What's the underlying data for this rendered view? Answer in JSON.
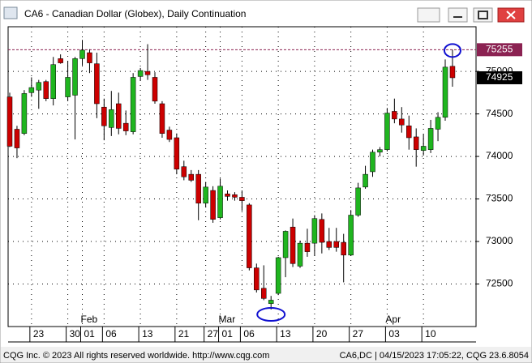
{
  "chart_data": {
    "type": "candlestick",
    "title": "CA6 - Canadian Dollar (Globex), Daily Continuation",
    "categories": [
      null,
      null,
      null,
      "23",
      null,
      null,
      null,
      null,
      "30",
      null,
      "01",
      null,
      null,
      "06",
      null,
      null,
      null,
      null,
      "13",
      null,
      null,
      null,
      null,
      "21",
      null,
      null,
      null,
      "27",
      null,
      "01",
      null,
      null,
      "06",
      null,
      null,
      null,
      null,
      "13",
      null,
      null,
      null,
      null,
      "20",
      null,
      null,
      null,
      null,
      "27",
      null,
      null,
      null,
      null,
      "03",
      null,
      null,
      null,
      null,
      "10",
      null,
      null,
      null,
      null
    ],
    "months": [
      null,
      null,
      null,
      null,
      null,
      null,
      null,
      null,
      null,
      null,
      "Feb",
      null,
      null,
      null,
      null,
      null,
      null,
      null,
      null,
      null,
      null,
      null,
      null,
      null,
      null,
      null,
      null,
      null,
      null,
      "Mar",
      null,
      null,
      null,
      null,
      null,
      null,
      null,
      null,
      null,
      null,
      null,
      null,
      null,
      null,
      null,
      null,
      null,
      null,
      null,
      null,
      null,
      null,
      "Apr",
      null,
      null,
      null,
      null,
      null,
      null,
      null,
      null,
      null
    ],
    "open": [
      74700,
      74320,
      74270,
      74750,
      74780,
      74880,
      74680,
      75150,
      74700,
      74720,
      75150,
      75220,
      75090,
      74580,
      74340,
      74620,
      74390,
      74290,
      74940,
      75000,
      74930,
      74620,
      74310,
      74220,
      73880,
      73790,
      73790,
      73450,
      73600,
      73280,
      73560,
      73550,
      73520,
      73430,
      72690,
      72450,
      72270,
      72390,
      72810,
      73170,
      72710,
      72980,
      72980,
      73260,
      73000,
      73000,
      72990,
      72840,
      73310,
      73640,
      73820,
      74050,
      74080,
      74530,
      74440,
      74360,
      74230,
      74070,
      74080,
      74320,
      74460,
      75060
    ],
    "high": [
      74750,
      74360,
      74780,
      74930,
      74900,
      74900,
      75170,
      75200,
      75120,
      75170,
      75370,
      75260,
      75220,
      74680,
      74770,
      74750,
      74540,
      74980,
      75040,
      75320,
      74990,
      74650,
      74350,
      74270,
      73950,
      73840,
      73840,
      73700,
      73650,
      73740,
      73600,
      73580,
      73600,
      73450,
      72740,
      72720,
      72360,
      72820,
      73130,
      73270,
      73010,
      73150,
      73310,
      73330,
      73160,
      73160,
      73090,
      73370,
      73690,
      73890,
      74080,
      74110,
      74570,
      74680,
      74580,
      74480,
      74330,
      74260,
      74430,
      74520,
      75140,
      75255
    ],
    "low": [
      74110,
      73980,
      74250,
      74700,
      74560,
      74650,
      74600,
      75090,
      74650,
      74200,
      75070,
      74980,
      74450,
      74190,
      74240,
      74260,
      74250,
      74260,
      74890,
      74900,
      74620,
      74220,
      74170,
      73790,
      73720,
      73700,
      73250,
      73400,
      73220,
      73260,
      73480,
      73480,
      73360,
      72660,
      72400,
      72310,
      72200,
      72370,
      72580,
      72700,
      72690,
      72820,
      72830,
      72860,
      72900,
      72880,
      72520,
      72830,
      73290,
      73620,
      73760,
      74000,
      74060,
      74390,
      74280,
      74080,
      73880,
      74010,
      74040,
      74180,
      74420,
      74820
    ],
    "close": [
      74120,
      74100,
      74740,
      74810,
      74870,
      74680,
      75080,
      75100,
      74930,
      75150,
      75250,
      75100,
      74620,
      74360,
      74550,
      74330,
      74300,
      74930,
      75010,
      74960,
      74650,
      74270,
      74200,
      73850,
      73760,
      73720,
      73450,
      73640,
      73260,
      73650,
      73530,
      73520,
      73480,
      72690,
      72430,
      72330,
      72310,
      72810,
      73120,
      72740,
      72980,
      72880,
      73270,
      72990,
      72930,
      72930,
      72840,
      73310,
      73630,
      73790,
      74050,
      74080,
      74510,
      74440,
      74370,
      74220,
      74080,
      74120,
      74330,
      74460,
      75050,
      74925
    ],
    "ylim": [
      72000,
      75525
    ],
    "yticks": [
      72500,
      73000,
      73500,
      74000,
      74500,
      75000
    ],
    "grid": true,
    "up_color": "#1fb51f",
    "down_color": "#cc0000",
    "reference_color": "#8b2252",
    "last_color": "#000000"
  },
  "footer": {
    "left": "CQG Inc. © 2023 All rights reserved worldwide. http://www.cqg.com",
    "right": "CA6,DC | 04/15/2023 17:05:22, CQG 23.6.8054"
  }
}
